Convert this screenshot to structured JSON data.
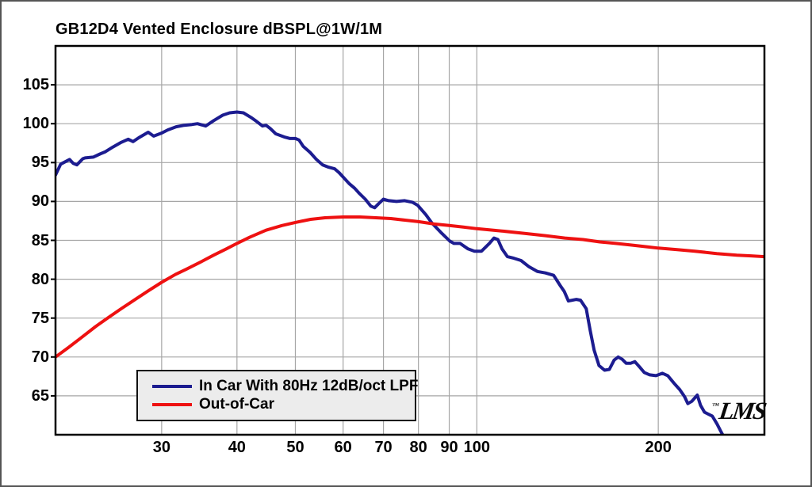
{
  "chart_data": {
    "type": "line",
    "title": "GB12D4 Vented Enclosure dBSPL@1W/1M",
    "xlabel": "",
    "ylabel": "",
    "xscale": "log",
    "xlim": [
      20,
      300
    ],
    "ylim": [
      60,
      110
    ],
    "xticks": [
      30,
      40,
      50,
      60,
      70,
      80,
      90,
      100,
      200
    ],
    "yticks": [
      65,
      70,
      75,
      80,
      85,
      90,
      95,
      100,
      105
    ],
    "grid": true,
    "legend_position": "inside-bottom-left",
    "watermark": "LMS",
    "watermark_tm": "™",
    "colors": {
      "background": "#ffffff",
      "frame": "#555555",
      "grid": "#a6a6a6",
      "axis": "#000000",
      "legend_bg": "#ececec",
      "legend_border": "#101010"
    },
    "series": [
      {
        "name": "In Car With 80Hz 12dB/oct LPF",
        "color": "#1c1c90",
        "points": [
          [
            20,
            93.4
          ],
          [
            20.4,
            94.8
          ],
          [
            21.1,
            95.4
          ],
          [
            21.4,
            94.9
          ],
          [
            21.7,
            94.7
          ],
          [
            22.2,
            95.5
          ],
          [
            22.4,
            95.6
          ],
          [
            23.1,
            95.7
          ],
          [
            23.7,
            96.1
          ],
          [
            24.2,
            96.4
          ],
          [
            24.9,
            97.0
          ],
          [
            25.7,
            97.6
          ],
          [
            26.4,
            98.0
          ],
          [
            26.9,
            97.7
          ],
          [
            27.5,
            98.2
          ],
          [
            28.5,
            98.9
          ],
          [
            29.1,
            98.4
          ],
          [
            30,
            98.8
          ],
          [
            30.7,
            99.2
          ],
          [
            31.7,
            99.6
          ],
          [
            32.7,
            99.8
          ],
          [
            33.7,
            99.9
          ],
          [
            34.4,
            100.0
          ],
          [
            35.5,
            99.7
          ],
          [
            36.6,
            100.4
          ],
          [
            37.9,
            101.1
          ],
          [
            38.9,
            101.4
          ],
          [
            40,
            101.5
          ],
          [
            41,
            101.4
          ],
          [
            42.2,
            100.8
          ],
          [
            43.1,
            100.3
          ],
          [
            44.1,
            99.7
          ],
          [
            44.7,
            99.8
          ],
          [
            45.4,
            99.4
          ],
          [
            46.4,
            98.7
          ],
          [
            47.9,
            98.3
          ],
          [
            49,
            98.1
          ],
          [
            50,
            98.1
          ],
          [
            50.7,
            97.9
          ],
          [
            51.5,
            97.1
          ],
          [
            52.9,
            96.3
          ],
          [
            54.2,
            95.4
          ],
          [
            55.5,
            94.7
          ],
          [
            56.8,
            94.4
          ],
          [
            58.1,
            94.2
          ],
          [
            59.1,
            93.7
          ],
          [
            61.4,
            92.3
          ],
          [
            62.7,
            91.7
          ],
          [
            63.9,
            91.0
          ],
          [
            65.3,
            90.3
          ],
          [
            66.7,
            89.4
          ],
          [
            67.7,
            89.2
          ],
          [
            68.7,
            89.7
          ],
          [
            70,
            90.3
          ],
          [
            71.4,
            90.1
          ],
          [
            73.6,
            90.0
          ],
          [
            75.9,
            90.1
          ],
          [
            78.2,
            89.9
          ],
          [
            79.8,
            89.5
          ],
          [
            82.3,
            88.3
          ],
          [
            84.3,
            87.2
          ],
          [
            87.5,
            85.9
          ],
          [
            90.2,
            84.9
          ],
          [
            91.6,
            84.6
          ],
          [
            93.8,
            84.6
          ],
          [
            96.7,
            83.9
          ],
          [
            99.1,
            83.6
          ],
          [
            101.8,
            83.6
          ],
          [
            104.9,
            84.6
          ],
          [
            106.8,
            85.3
          ],
          [
            108.4,
            85.1
          ],
          [
            110.1,
            83.9
          ],
          [
            112.4,
            82.9
          ],
          [
            115.2,
            82.7
          ],
          [
            118.4,
            82.4
          ],
          [
            122.1,
            81.6
          ],
          [
            126,
            81.0
          ],
          [
            130,
            80.8
          ],
          [
            134.1,
            80.5
          ],
          [
            137.5,
            79.2
          ],
          [
            139.7,
            78.4
          ],
          [
            141.9,
            77.2
          ],
          [
            146.3,
            77.4
          ],
          [
            148.6,
            77.3
          ],
          [
            151.9,
            76.2
          ],
          [
            154.2,
            73.4
          ],
          [
            156.5,
            70.9
          ],
          [
            159.5,
            68.9
          ],
          [
            162.9,
            68.3
          ],
          [
            165.9,
            68.4
          ],
          [
            169,
            69.6
          ],
          [
            171.6,
            70.0
          ],
          [
            174.2,
            69.7
          ],
          [
            176.9,
            69.2
          ],
          [
            180.1,
            69.2
          ],
          [
            182.9,
            69.4
          ],
          [
            186.3,
            68.7
          ],
          [
            189.6,
            68.0
          ],
          [
            193.6,
            67.7
          ],
          [
            198.3,
            67.6
          ],
          [
            203.2,
            67.9
          ],
          [
            207.4,
            67.6
          ],
          [
            212.5,
            66.6
          ],
          [
            217.1,
            65.8
          ],
          [
            221.1,
            64.9
          ],
          [
            223.9,
            64.0
          ],
          [
            227.3,
            64.3
          ],
          [
            232.1,
            65.1
          ],
          [
            235,
            63.8
          ],
          [
            238.6,
            62.9
          ],
          [
            241.4,
            62.7
          ],
          [
            245.8,
            62.4
          ],
          [
            250.3,
            61.4
          ],
          [
            254.1,
            60.4
          ],
          [
            256.6,
            59.8
          ]
        ]
      },
      {
        "name": "Out-of-Car",
        "color": "#ee1111",
        "points": [
          [
            20,
            70.0
          ],
          [
            21,
            71.2
          ],
          [
            22,
            72.4
          ],
          [
            23.3,
            73.9
          ],
          [
            24.5,
            75.1
          ],
          [
            25.7,
            76.2
          ],
          [
            27,
            77.3
          ],
          [
            28.5,
            78.5
          ],
          [
            30,
            79.6
          ],
          [
            31.6,
            80.6
          ],
          [
            33,
            81.3
          ],
          [
            35,
            82.3
          ],
          [
            36.6,
            83.1
          ],
          [
            38.4,
            83.9
          ],
          [
            40,
            84.6
          ],
          [
            42,
            85.4
          ],
          [
            44.7,
            86.3
          ],
          [
            47.5,
            86.9
          ],
          [
            50,
            87.3
          ],
          [
            53,
            87.7
          ],
          [
            56,
            87.9
          ],
          [
            60,
            88.0
          ],
          [
            64,
            88.0
          ],
          [
            68,
            87.9
          ],
          [
            72,
            87.8
          ],
          [
            76,
            87.6
          ],
          [
            80,
            87.4
          ],
          [
            85,
            87.1
          ],
          [
            90,
            86.9
          ],
          [
            95,
            86.7
          ],
          [
            100,
            86.5
          ],
          [
            110,
            86.2
          ],
          [
            120,
            85.9
          ],
          [
            130,
            85.6
          ],
          [
            140,
            85.3
          ],
          [
            150,
            85.1
          ],
          [
            160,
            84.8
          ],
          [
            170,
            84.6
          ],
          [
            180,
            84.4
          ],
          [
            190,
            84.2
          ],
          [
            200,
            84.0
          ],
          [
            215,
            83.8
          ],
          [
            230,
            83.6
          ],
          [
            250,
            83.3
          ],
          [
            270,
            83.1
          ],
          [
            285,
            83.0
          ],
          [
            300,
            82.9
          ]
        ]
      }
    ]
  }
}
